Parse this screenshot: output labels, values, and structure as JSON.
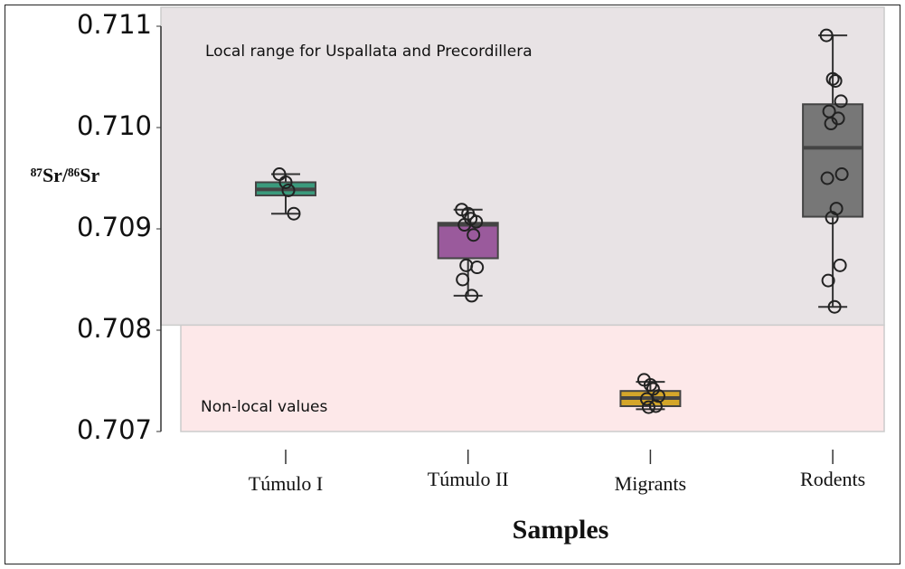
{
  "chart_data": {
    "type": "box",
    "ylabel": "⁸⁷Sr/⁸⁶Sr",
    "xlabel": "Samples",
    "ylim": [
      0.707,
      0.711
    ],
    "yticks": [
      0.707,
      0.708,
      0.709,
      {
        "value": 0.71,
        "label": "0.710"
      },
      0.711
    ],
    "regions": [
      {
        "label": "Local range for Uspallata and Precordillera",
        "from": 0.70805,
        "to": 0.7112,
        "color": "#e8e3e5"
      },
      {
        "label": "Non-local values",
        "from": 0.707,
        "to": 0.70805,
        "color": "#fde8e9"
      }
    ],
    "categories": [
      "Túmulo I",
      "Túmulo II",
      "Migrants",
      "Rodents"
    ],
    "series": [
      {
        "color": "#3a9a7c",
        "whisker_low": 0.70915,
        "q1": 0.70933,
        "median": 0.70939,
        "q3": 0.70946,
        "whisker_high": 0.70954,
        "points": [
          0.70954,
          0.70946,
          0.70938,
          0.70915
        ]
      },
      {
        "color": "#9a5a9c",
        "whisker_low": 0.70834,
        "q1": 0.70871,
        "median": 0.70904,
        "q3": 0.70906,
        "whisker_high": 0.70919,
        "points": [
          0.70919,
          0.70915,
          0.7091,
          0.70907,
          0.70904,
          0.70894,
          0.70864,
          0.70862,
          0.7085,
          0.70834
        ]
      },
      {
        "color": "#d4a62a",
        "whisker_low": 0.70722,
        "q1": 0.70725,
        "median": 0.70733,
        "q3": 0.7074,
        "whisker_high": 0.70749,
        "points": [
          0.70751,
          0.70746,
          0.70742,
          0.70735,
          0.70732,
          0.70725,
          0.70724
        ]
      },
      {
        "color": "#777777",
        "whisker_low": 0.70823,
        "q1": 0.70912,
        "median": 0.7098,
        "q3": 0.71023,
        "whisker_high": 0.71091,
        "points": [
          0.71091,
          0.71048,
          0.71046,
          0.71026,
          0.71016,
          0.71009,
          0.71004,
          0.70954,
          0.7095,
          0.7092,
          0.70911,
          0.70864,
          0.70849,
          0.70823
        ]
      }
    ]
  }
}
